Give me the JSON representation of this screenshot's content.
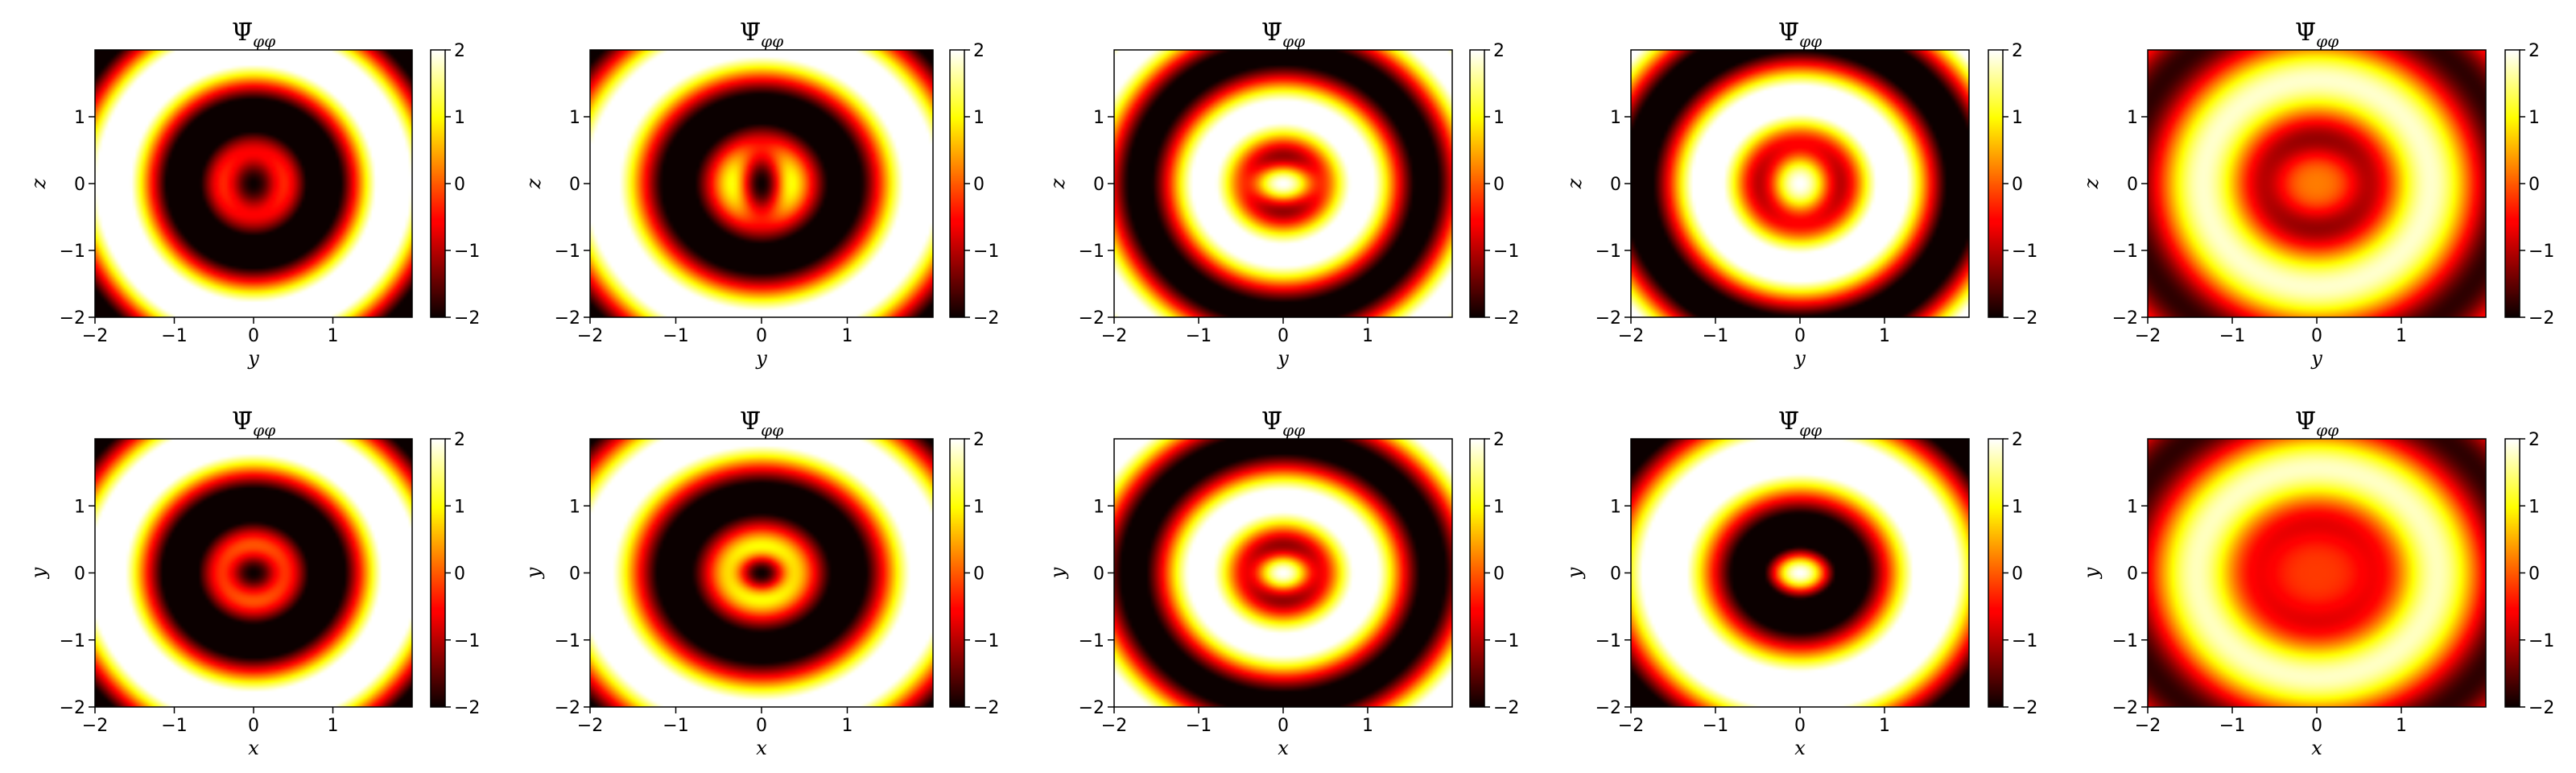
{
  "chart_data": [
    {
      "type": "heatmap",
      "title": {
        "main": "Ψ̄",
        "sub": "φφ"
      },
      "xlabel": "y",
      "ylabel": "z",
      "xlim": [
        -2,
        2
      ],
      "ylim": [
        -2,
        2
      ],
      "xticks": [
        "−2",
        "−1",
        "0",
        "1"
      ],
      "yticks": [
        "−2",
        "−1",
        "0",
        "1"
      ],
      "colorbar": {
        "min": -2,
        "max": 2,
        "ticks": [
          "−2",
          "−1",
          "0",
          "1",
          "2"
        ],
        "colormap": "hot"
      },
      "field": {
        "center": -2.0,
        "cx": 0.45,
        "cz": 0.6,
        "ring_k": 3.1,
        "ring_amp": 2.8,
        "ring_offset": 0.0,
        "aniso": 1.15
      }
    },
    {
      "type": "heatmap",
      "title": {
        "main": "Ψ̄",
        "sub": "φφ"
      },
      "xlabel": "y",
      "ylabel": "z",
      "xlim": [
        -2,
        2
      ],
      "ylim": [
        -2,
        2
      ],
      "xticks": [
        "−2",
        "−1",
        "0",
        "1"
      ],
      "yticks": [
        "−2",
        "−1",
        "0",
        "1"
      ],
      "colorbar": {
        "min": -2,
        "max": 2,
        "ticks": [
          "−2",
          "−1",
          "0",
          "1",
          "2"
        ],
        "colormap": "hot"
      },
      "field": {
        "center": -2.0,
        "cx": 0.3,
        "cz": 0.65,
        "ring_k": 3.1,
        "ring_amp": 2.6,
        "ring_offset": 0.1,
        "aniso": 1.15
      }
    },
    {
      "type": "heatmap",
      "title": {
        "main": "Ψ̄",
        "sub": "φφ"
      },
      "xlabel": "y",
      "ylabel": "z",
      "xlim": [
        -2,
        2
      ],
      "ylim": [
        -2,
        2
      ],
      "xticks": [
        "−2",
        "−1",
        "0",
        "1"
      ],
      "yticks": [
        "−2",
        "−1",
        "0",
        "1"
      ],
      "colorbar": {
        "min": -2,
        "max": 2,
        "ticks": [
          "−2",
          "−1",
          "0",
          "1",
          "2"
        ],
        "colormap": "hot"
      },
      "field": {
        "center": 2.0,
        "cx": 0.45,
        "cz": 0.35,
        "ring_k": 3.6,
        "ring_amp": -2.4,
        "ring_offset": 0.2,
        "aniso": 1.15
      }
    },
    {
      "type": "heatmap",
      "title": {
        "main": "Ψ̄",
        "sub": "φφ"
      },
      "xlabel": "y",
      "ylabel": "z",
      "xlim": [
        -2,
        2
      ],
      "ylim": [
        -2,
        2
      ],
      "xticks": [
        "−2",
        "−1",
        "0",
        "1"
      ],
      "yticks": [
        "−2",
        "−1",
        "0",
        "1"
      ],
      "colorbar": {
        "min": -2,
        "max": 2,
        "ticks": [
          "−2",
          "−1",
          "0",
          "1",
          "2"
        ],
        "colormap": "hot"
      },
      "field": {
        "center": 2.0,
        "cx": 0.45,
        "cz": 0.6,
        "ring_k": 3.3,
        "ring_amp": -2.6,
        "ring_offset": 0.3,
        "aniso": 1.15
      }
    },
    {
      "type": "heatmap",
      "title": {
        "main": "Ψ̄",
        "sub": "φφ"
      },
      "xlabel": "y",
      "ylabel": "z",
      "xlim": [
        -2,
        2
      ],
      "ylim": [
        -2,
        2
      ],
      "xticks": [
        "−2",
        "−1",
        "0",
        "1"
      ],
      "yticks": [
        "−2",
        "−1",
        "0",
        "1"
      ],
      "colorbar": {
        "min": -2,
        "max": 2,
        "ticks": [
          "−2",
          "−1",
          "0",
          "1",
          "2"
        ],
        "colormap": "hot"
      },
      "field": {
        "center": 0.2,
        "cx": 0.6,
        "cz": 0.6,
        "ring_k": 3.0,
        "ring_amp": -1.8,
        "ring_offset": 0.5,
        "aniso": 1.15
      }
    },
    {
      "type": "heatmap",
      "title": {
        "main": "Ψ̄",
        "sub": "φφ"
      },
      "xlabel": "x",
      "ylabel": "y",
      "xlim": [
        -2,
        2
      ],
      "ylim": [
        -2,
        2
      ],
      "xticks": [
        "−2",
        "−1",
        "0",
        "1"
      ],
      "yticks": [
        "−2",
        "−1",
        "0",
        "1"
      ],
      "colorbar": {
        "min": -2,
        "max": 2,
        "ticks": [
          "−2",
          "−1",
          "0",
          "1",
          "2"
        ],
        "colormap": "hot"
      },
      "field": {
        "center": -2.0,
        "cx": 0.45,
        "cz": 0.45,
        "ring_k": 3.1,
        "ring_amp": 2.8,
        "ring_offset": 0.0,
        "aniso": 1.1
      }
    },
    {
      "type": "heatmap",
      "title": {
        "main": "Ψ̄",
        "sub": "φφ"
      },
      "xlabel": "x",
      "ylabel": "y",
      "xlim": [
        -2,
        2
      ],
      "ylim": [
        -2,
        2
      ],
      "xticks": [
        "−2",
        "−1",
        "0",
        "1"
      ],
      "yticks": [
        "−2",
        "−1",
        "0",
        "1"
      ],
      "colorbar": {
        "min": -2,
        "max": 2,
        "ticks": [
          "−2",
          "−1",
          "0",
          "1",
          "2"
        ],
        "colormap": "hot"
      },
      "field": {
        "center": -2.0,
        "cx": 0.35,
        "cz": 0.35,
        "ring_k": 3.1,
        "ring_amp": 2.6,
        "ring_offset": 0.1,
        "aniso": 1.1
      }
    },
    {
      "type": "heatmap",
      "title": {
        "main": "Ψ̄",
        "sub": "φφ"
      },
      "xlabel": "x",
      "ylabel": "y",
      "xlim": [
        -2,
        2
      ],
      "ylim": [
        -2,
        2
      ],
      "xticks": [
        "−2",
        "−1",
        "0",
        "1"
      ],
      "yticks": [
        "−2",
        "−1",
        "0",
        "1"
      ],
      "colorbar": {
        "min": -2,
        "max": 2,
        "ticks": [
          "−2",
          "−1",
          "0",
          "1",
          "2"
        ],
        "colormap": "hot"
      },
      "field": {
        "center": 2.0,
        "cx": 0.4,
        "cz": 0.35,
        "ring_k": 3.6,
        "ring_amp": -2.4,
        "ring_offset": 0.2,
        "aniso": 1.1
      }
    },
    {
      "type": "heatmap",
      "title": {
        "main": "Ψ̄",
        "sub": "φφ"
      },
      "xlabel": "x",
      "ylabel": "y",
      "xlim": [
        -2,
        2
      ],
      "ylim": [
        -2,
        2
      ],
      "xticks": [
        "−2",
        "−1",
        "0",
        "1"
      ],
      "yticks": [
        "−2",
        "−1",
        "0",
        "1"
      ],
      "colorbar": {
        "min": -2,
        "max": 2,
        "ticks": [
          "−2",
          "−1",
          "0",
          "1",
          "2"
        ],
        "colormap": "hot"
      },
      "field": {
        "center": 2.0,
        "cx": 0.35,
        "cz": 0.3,
        "ring_k": 2.7,
        "ring_amp": -2.8,
        "ring_offset": 0.6,
        "aniso": 1.1
      }
    },
    {
      "type": "heatmap",
      "title": {
        "main": "Ψ̄",
        "sub": "φφ"
      },
      "xlabel": "x",
      "ylabel": "y",
      "xlim": [
        -2,
        2
      ],
      "ylim": [
        -2,
        2
      ],
      "xticks": [
        "−2",
        "−1",
        "0",
        "1"
      ],
      "yticks": [
        "−2",
        "−1",
        "0",
        "1"
      ],
      "colorbar": {
        "min": -2,
        "max": 2,
        "ticks": [
          "−2",
          "−1",
          "0",
          "1",
          "2"
        ],
        "colormap": "hot"
      },
      "field": {
        "center": -0.2,
        "cx": 0.9,
        "cz": 0.9,
        "ring_k": 3.0,
        "ring_amp": -1.8,
        "ring_offset": 0.5,
        "aniso": 1.1
      }
    }
  ]
}
